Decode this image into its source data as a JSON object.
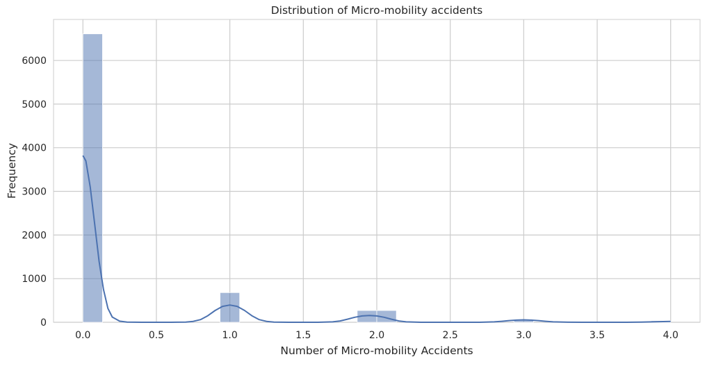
{
  "chart_data": {
    "type": "bar",
    "title": "Distribution of Micro-mobility accidents",
    "xlabel": "Number of Micro-mobility Accidents",
    "ylabel": "Frequency",
    "xlim": [
      -0.2,
      4.2
    ],
    "ylim": [
      0,
      6940
    ],
    "x_ticks": [
      0.0,
      0.5,
      1.0,
      1.5,
      2.0,
      2.5,
      3.0,
      3.5,
      4.0
    ],
    "x_tick_labels": [
      "0.0",
      "0.5",
      "1.0",
      "1.5",
      "2.0",
      "2.5",
      "3.0",
      "3.5",
      "4.0"
    ],
    "y_ticks": [
      0,
      1000,
      2000,
      3000,
      4000,
      5000,
      6000
    ],
    "y_tick_labels": [
      "0",
      "1000",
      "2000",
      "3000",
      "4000",
      "5000",
      "6000"
    ],
    "bin_width": 0.1333,
    "bins": [
      {
        "x0": 0.0,
        "x1": 0.1333,
        "count": 6610
      },
      {
        "x0": 0.9333,
        "x1": 1.0667,
        "count": 680
      },
      {
        "x0": 1.8667,
        "x1": 2.0,
        "count": 270
      },
      {
        "x0": 2.0,
        "x1": 2.1333,
        "count": 270
      },
      {
        "x0": 2.9333,
        "x1": 3.0667,
        "count": 60
      },
      {
        "x0": 3.8667,
        "x1": 4.0,
        "count": 35
      }
    ],
    "kde": {
      "x": [
        0.0,
        0.02,
        0.05,
        0.08,
        0.11,
        0.14,
        0.17,
        0.2,
        0.25,
        0.3,
        0.4,
        0.5,
        0.6,
        0.7,
        0.75,
        0.8,
        0.85,
        0.9,
        0.95,
        1.0,
        1.05,
        1.1,
        1.15,
        1.2,
        1.25,
        1.3,
        1.4,
        1.5,
        1.6,
        1.7,
        1.75,
        1.8,
        1.85,
        1.9,
        1.95,
        2.0,
        2.05,
        2.1,
        2.15,
        2.2,
        2.3,
        2.4,
        2.5,
        2.6,
        2.7,
        2.8,
        2.85,
        2.9,
        2.95,
        3.0,
        3.05,
        3.1,
        3.15,
        3.2,
        3.3,
        3.4,
        3.5,
        3.6,
        3.7,
        3.8,
        3.9,
        4.0
      ],
      "y": [
        3820,
        3700,
        3100,
        2250,
        1400,
        750,
        320,
        120,
        25,
        5,
        0,
        0,
        0,
        5,
        20,
        60,
        150,
        270,
        365,
        395,
        365,
        270,
        150,
        60,
        20,
        5,
        0,
        0,
        0,
        10,
        30,
        70,
        115,
        145,
        155,
        145,
        115,
        70,
        30,
        10,
        0,
        0,
        0,
        0,
        0,
        10,
        22,
        38,
        50,
        55,
        50,
        38,
        22,
        10,
        2,
        0,
        0,
        0,
        0,
        3,
        12,
        20
      ]
    },
    "grid": true,
    "bar_color": "#4c72b0",
    "bar_opacity": 0.5,
    "line_color": "#4c72b0",
    "grid_color": "#cccccc",
    "text_color": "#262626"
  }
}
